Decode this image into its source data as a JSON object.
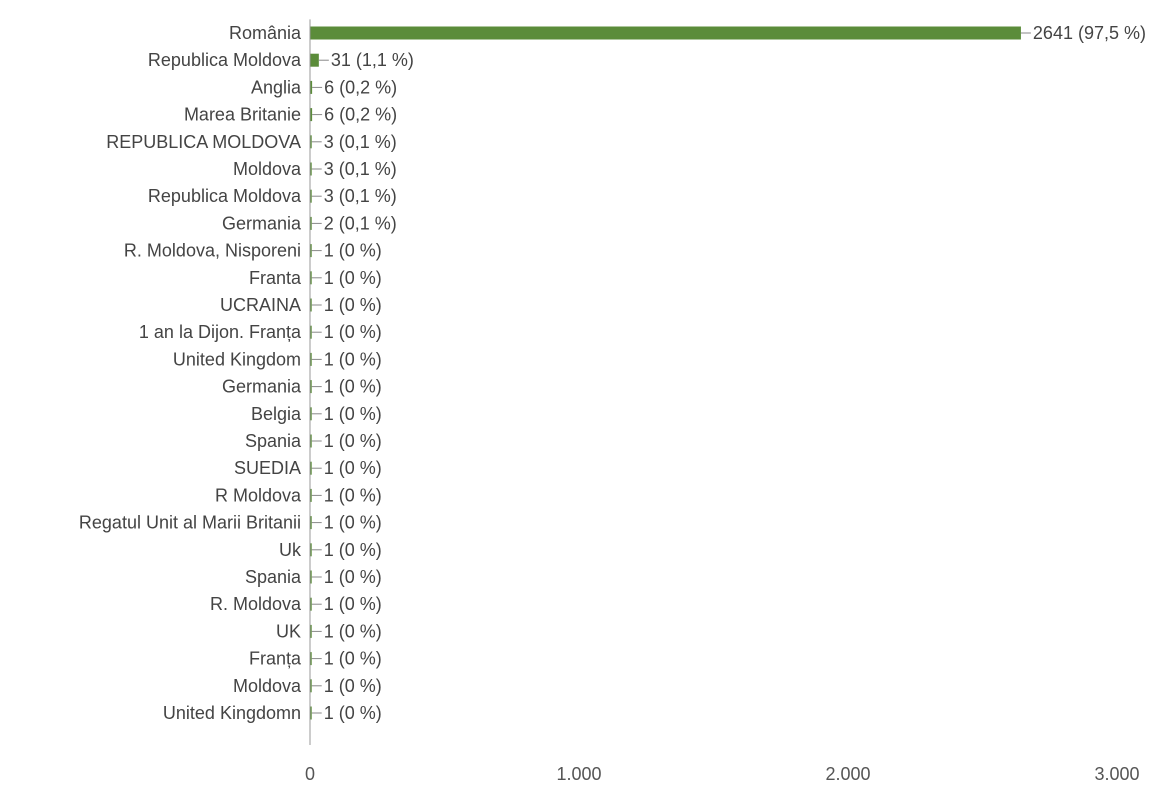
{
  "chart_data": {
    "type": "bar",
    "orientation": "horizontal",
    "title": "",
    "xlabel": "",
    "ylabel": "",
    "xlim": [
      0,
      3000
    ],
    "grid": false,
    "legend": "none",
    "bar_color": "#5b8c3a",
    "xticks": [
      {
        "value": 0,
        "label": "0"
      },
      {
        "value": 1000,
        "label": "1.000"
      },
      {
        "value": 2000,
        "label": "2.000"
      },
      {
        "value": 3000,
        "label": "3.000"
      }
    ],
    "categories": [
      "România",
      "Republica Moldova",
      "Anglia",
      "Marea Britanie",
      "REPUBLICA MOLDOVA",
      "Moldova",
      "Republica Moldova",
      "Germania",
      "R. Moldova, Nisporeni",
      "Franta",
      "UCRAINA",
      "1 an la Dijon. Franța",
      "United Kingdom",
      "Germania",
      "Belgia",
      "Spania",
      "SUEDIA",
      "R Moldova",
      "Regatul Unit al Marii Britanii",
      "Uk",
      "Spania",
      "R. Moldova",
      "UK",
      "Franța",
      "Moldova",
      "United Kingdomn"
    ],
    "values": [
      2641,
      31,
      6,
      6,
      3,
      3,
      3,
      2,
      1,
      1,
      1,
      1,
      1,
      1,
      1,
      1,
      1,
      1,
      1,
      1,
      1,
      1,
      1,
      1,
      1,
      1
    ],
    "data_labels": [
      "2641 (97,5 %)",
      "31 (1,1 %)",
      "6 (0,2 %)",
      "6 (0,2 %)",
      "3 (0,1 %)",
      "3 (0,1 %)",
      "3 (0,1 %)",
      "2 (0,1 %)",
      "1 (0 %)",
      "1 (0 %)",
      "1 (0 %)",
      "1 (0 %)",
      "1 (0 %)",
      "1 (0 %)",
      "1 (0 %)",
      "1 (0 %)",
      "1 (0 %)",
      "1 (0 %)",
      "1 (0 %)",
      "1 (0 %)",
      "1 (0 %)",
      "1 (0 %)",
      "1 (0 %)",
      "1 (0 %)",
      "1 (0 %)",
      "1 (0 %)"
    ]
  }
}
